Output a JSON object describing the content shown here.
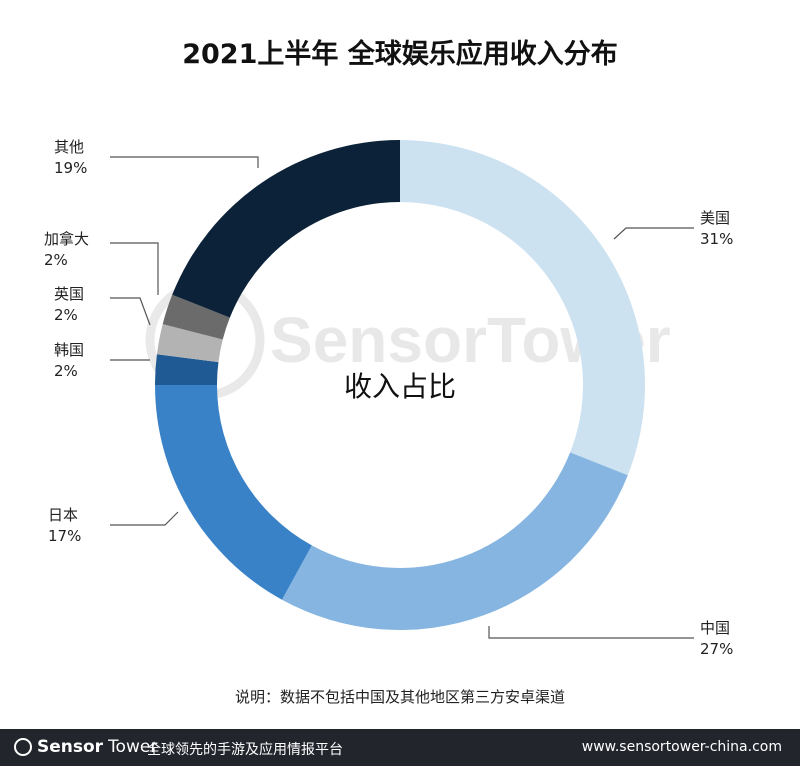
{
  "title": "2021上半年 全球娱乐应用收入分布",
  "chart_data": {
    "type": "pie",
    "donut": true,
    "center_label": "收入占比",
    "categories": [
      "美国",
      "中国",
      "日本",
      "韩国",
      "英国",
      "加拿大",
      "其他"
    ],
    "values": [
      31,
      27,
      17,
      2,
      2,
      2,
      19
    ],
    "value_labels": [
      "31%",
      "27%",
      "17%",
      "2%",
      "2%",
      "2%",
      "19%"
    ],
    "colors": [
      "#cde2f1",
      "#85b5e0",
      "#3a82c8",
      "#1f5a94",
      "#b3b3b3",
      "#6b6b6b",
      "#0c2238"
    ],
    "direction": "clockwise from top"
  },
  "watermark": "SensorTower",
  "note": "说明：数据不包括中国及其他地区第三方安卓渠道",
  "footer": {
    "brand_bold": "Sensor",
    "brand_light": "Tower",
    "slogan": "全球领先的手游及应用情报平台",
    "url": "www.sensortower-china.com"
  }
}
